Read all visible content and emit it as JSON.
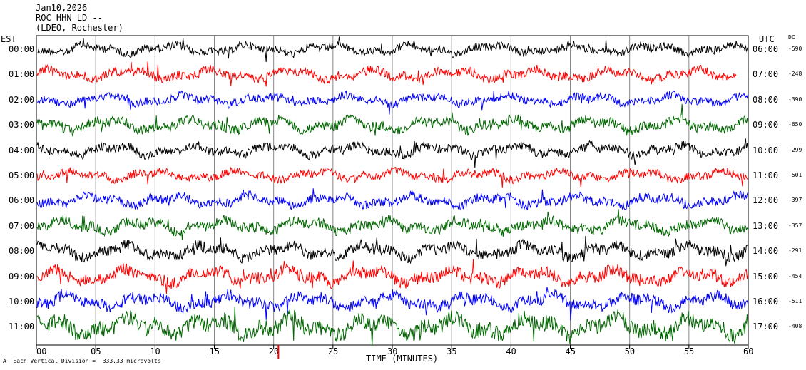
{
  "header": {
    "date": "Jan10,2026",
    "station": "ROC HHN LD --",
    "network": "(LDEO, Rochester)"
  },
  "left_zone": "EST",
  "right_zone": "UTC",
  "dc_header": "DC",
  "footer": "Each Vertical Division =  333.33 microvolts",
  "footer_mark": "A",
  "colors": {
    "black": "#000000",
    "red": "#ff0000",
    "blue": "#0000ff",
    "green": "#006600",
    "marker": "#ff0000"
  },
  "chart_data": {
    "type": "line",
    "title": "ROC HHN LD --",
    "xlabel": "TIME (MINUTES)",
    "ylabel": "",
    "xlim": [
      0,
      60
    ],
    "x_ticks": [
      "00",
      "05",
      "10",
      "15",
      "20",
      "25",
      "30",
      "35",
      "40",
      "45",
      "50",
      "55",
      "60"
    ],
    "grid": true,
    "event_marker_minute": 20.4,
    "rows": [
      {
        "est": "00:00",
        "utc": "06:00",
        "dc": "-590",
        "color": "black",
        "amplitude": 0.35,
        "end_minute": 60
      },
      {
        "est": "01:00",
        "utc": "07:00",
        "dc": "-248",
        "color": "red",
        "amplitude": 0.4,
        "end_minute": 59
      },
      {
        "est": "02:00",
        "utc": "08:00",
        "dc": "-390",
        "color": "blue",
        "amplitude": 0.35,
        "end_minute": 60
      },
      {
        "est": "03:00",
        "utc": "09:00",
        "dc": "-650",
        "color": "green",
        "amplitude": 0.45,
        "end_minute": 60
      },
      {
        "est": "04:00",
        "utc": "10:00",
        "dc": "-299",
        "color": "black",
        "amplitude": 0.4,
        "end_minute": 60
      },
      {
        "est": "05:00",
        "utc": "11:00",
        "dc": "-501",
        "color": "red",
        "amplitude": 0.35,
        "end_minute": 60
      },
      {
        "est": "06:00",
        "utc": "12:00",
        "dc": "-397",
        "color": "blue",
        "amplitude": 0.4,
        "end_minute": 60
      },
      {
        "est": "07:00",
        "utc": "13:00",
        "dc": "-357",
        "color": "green",
        "amplitude": 0.45,
        "end_minute": 60
      },
      {
        "est": "08:00",
        "utc": "14:00",
        "dc": "-291",
        "color": "black",
        "amplitude": 0.5,
        "end_minute": 60
      },
      {
        "est": "09:00",
        "utc": "15:00",
        "dc": "-454",
        "color": "red",
        "amplitude": 0.55,
        "end_minute": 60
      },
      {
        "est": "10:00",
        "utc": "16:00",
        "dc": "-511",
        "color": "blue",
        "amplitude": 0.5,
        "end_minute": 60
      },
      {
        "est": "11:00",
        "utc": "17:00",
        "dc": "-408",
        "color": "green",
        "amplitude": 0.7,
        "end_minute": 60
      }
    ]
  }
}
